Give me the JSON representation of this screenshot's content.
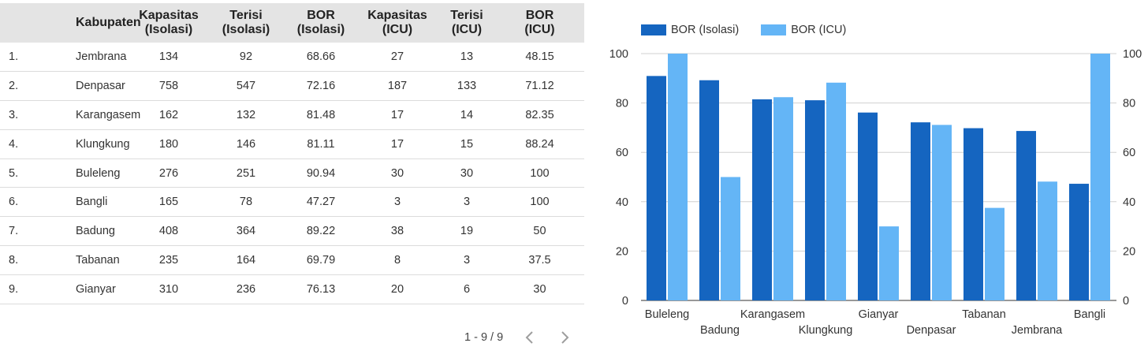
{
  "table": {
    "headers": {
      "kabupaten": "Kabupaten",
      "kap_iso_1": "Kapasitas",
      "kap_iso_2": "(Isolasi)",
      "ter_iso_1": "Terisi",
      "ter_iso_2": "(Isolasi)",
      "bor_iso_1": "BOR",
      "bor_iso_2": "(Isolasi)",
      "kap_icu_1": "Kapasitas",
      "kap_icu_2": "(ICU)",
      "ter_icu_1": "Terisi",
      "ter_icu_2": "(ICU)",
      "bor_icu_1": "BOR",
      "bor_icu_2": "(ICU)"
    },
    "rows": [
      {
        "no": "1.",
        "kab": "Jembrana",
        "kap_iso": "134",
        "ter_iso": "92",
        "bor_iso": "68.66",
        "kap_icu": "27",
        "ter_icu": "13",
        "bor_icu": "48.15"
      },
      {
        "no": "2.",
        "kab": "Denpasar",
        "kap_iso": "758",
        "ter_iso": "547",
        "bor_iso": "72.16",
        "kap_icu": "187",
        "ter_icu": "133",
        "bor_icu": "71.12"
      },
      {
        "no": "3.",
        "kab": "Karangasem",
        "kap_iso": "162",
        "ter_iso": "132",
        "bor_iso": "81.48",
        "kap_icu": "17",
        "ter_icu": "14",
        "bor_icu": "82.35"
      },
      {
        "no": "4.",
        "kab": "Klungkung",
        "kap_iso": "180",
        "ter_iso": "146",
        "bor_iso": "81.11",
        "kap_icu": "17",
        "ter_icu": "15",
        "bor_icu": "88.24"
      },
      {
        "no": "5.",
        "kab": "Buleleng",
        "kap_iso": "276",
        "ter_iso": "251",
        "bor_iso": "90.94",
        "kap_icu": "30",
        "ter_icu": "30",
        "bor_icu": "100"
      },
      {
        "no": "6.",
        "kab": "Bangli",
        "kap_iso": "165",
        "ter_iso": "78",
        "bor_iso": "47.27",
        "kap_icu": "3",
        "ter_icu": "3",
        "bor_icu": "100"
      },
      {
        "no": "7.",
        "kab": "Badung",
        "kap_iso": "408",
        "ter_iso": "364",
        "bor_iso": "89.22",
        "kap_icu": "38",
        "ter_icu": "19",
        "bor_icu": "50"
      },
      {
        "no": "8.",
        "kab": "Tabanan",
        "kap_iso": "235",
        "ter_iso": "164",
        "bor_iso": "69.79",
        "kap_icu": "8",
        "ter_icu": "3",
        "bor_icu": "37.5"
      },
      {
        "no": "9.",
        "kab": "Gianyar",
        "kap_iso": "310",
        "ter_iso": "236",
        "bor_iso": "76.13",
        "kap_icu": "20",
        "ter_icu": "6",
        "bor_icu": "30"
      }
    ]
  },
  "pagination": {
    "label": "1 - 9 / 9",
    "prev_icon": "chevron-left-icon",
    "next_icon": "chevron-right-icon"
  },
  "chart_data": {
    "type": "bar",
    "categories": [
      "Buleleng",
      "Badung",
      "Karangasem",
      "Klungkung",
      "Gianyar",
      "Denpasar",
      "Tabanan",
      "Jembrana",
      "Bangli"
    ],
    "series": [
      {
        "name": "BOR (Isolasi)",
        "color": "#1565c0",
        "values": [
          90.94,
          89.22,
          81.48,
          81.11,
          76.13,
          72.16,
          69.79,
          68.66,
          47.27
        ]
      },
      {
        "name": "BOR (ICU)",
        "color": "#64b5f6",
        "values": [
          100,
          50,
          82.35,
          88.24,
          30,
          71.12,
          37.5,
          48.15,
          100
        ]
      }
    ],
    "ylim": [
      0,
      100
    ],
    "yticks": [
      0,
      20,
      40,
      60,
      80,
      100
    ],
    "legend_position": "top-left",
    "grid": true,
    "secondary_axis": true
  }
}
